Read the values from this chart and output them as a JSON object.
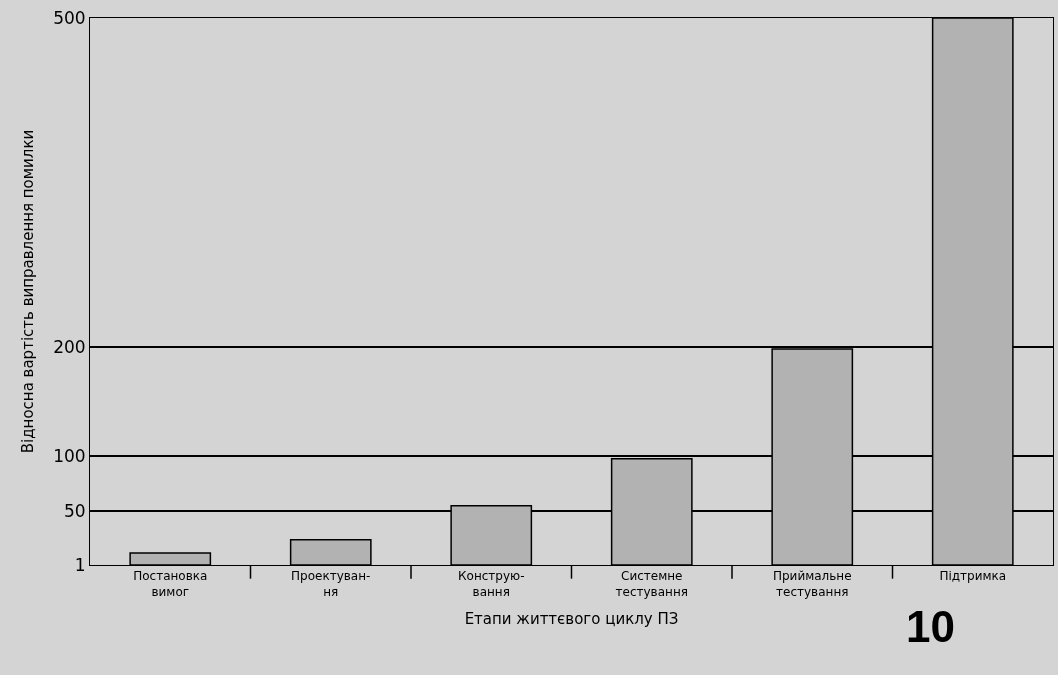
{
  "chart_data": {
    "type": "bar",
    "xlabel": "Етапи життєвого циклу ПЗ",
    "ylabel": "Відносна вартість виправлення помилки",
    "categories": [
      "Постановка\nвимог",
      "Проектуван-\nня",
      "Конструю-\nвання",
      "Системне\nтестування",
      "Приймальне\nтестування",
      "Підтримка"
    ],
    "values": [
      12,
      24,
      55,
      98,
      198,
      500
    ],
    "color": "#b2b2b2",
    "ylim": [
      1,
      500
    ],
    "yticks": [
      1,
      50,
      100,
      200,
      500
    ],
    "grid": "y",
    "legend": false,
    "annotations": [
      "10"
    ]
  }
}
